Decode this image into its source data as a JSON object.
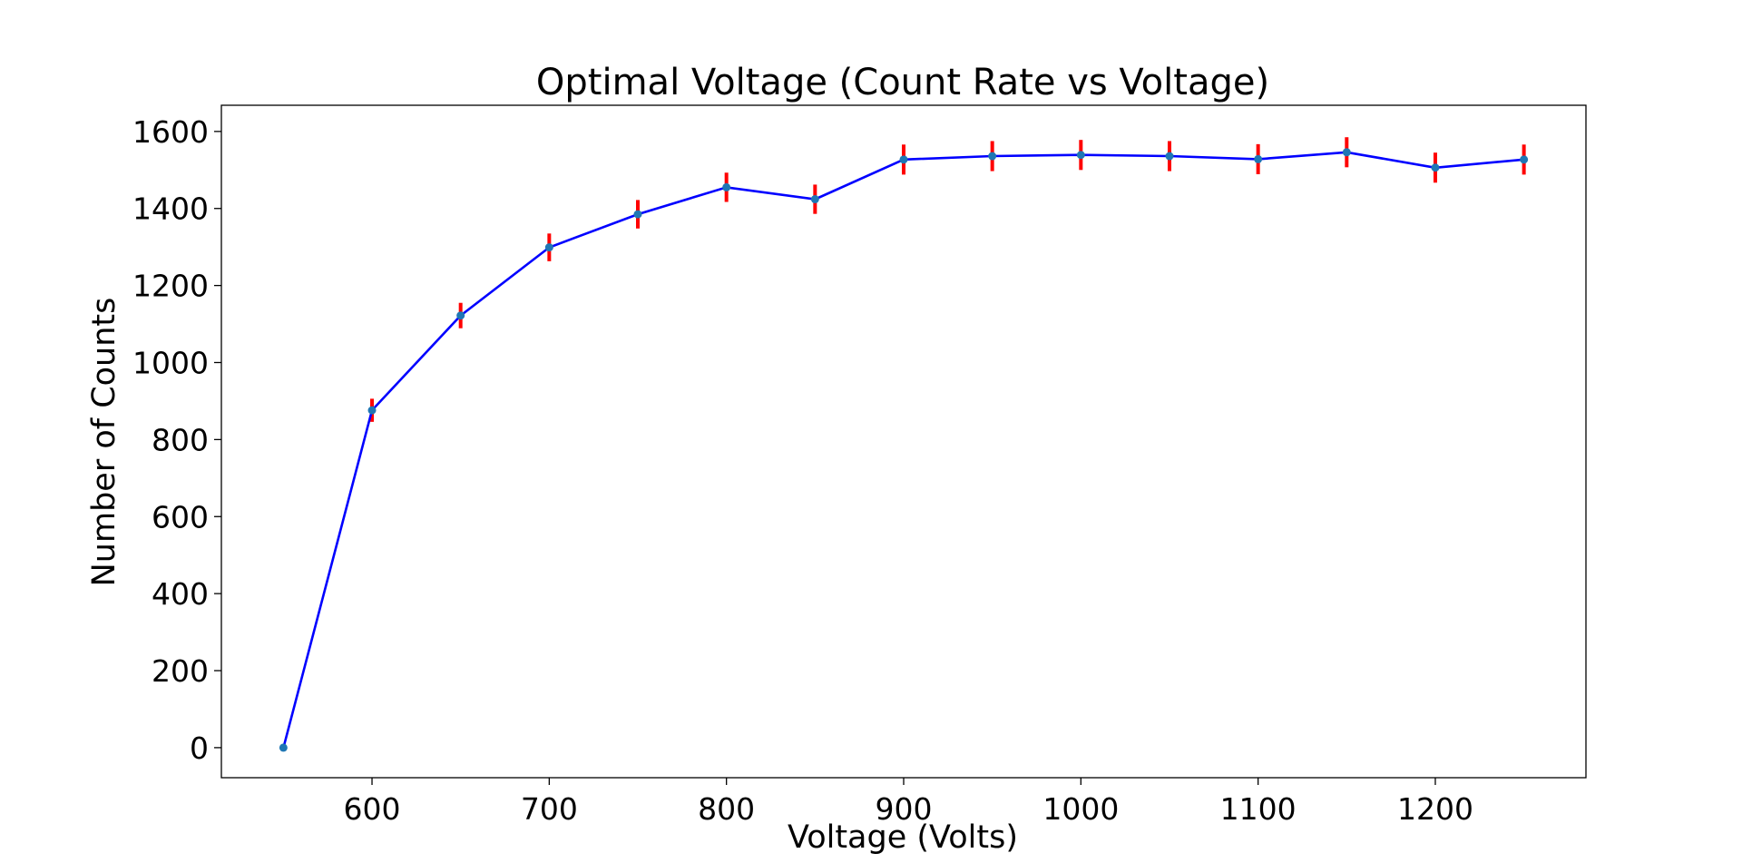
{
  "chart_data": {
    "type": "line",
    "title": "Optimal Voltage (Count Rate vs Voltage)",
    "xlabel": "Voltage (Volts)",
    "ylabel": "Number of Counts",
    "xlim": [
      515,
      1285
    ],
    "ylim": [
      -78,
      1668
    ],
    "x_ticks": [
      600,
      700,
      800,
      900,
      1000,
      1100,
      1200
    ],
    "y_ticks": [
      0,
      200,
      400,
      600,
      800,
      1000,
      1200,
      1400,
      1600
    ],
    "grid": false,
    "series": [
      {
        "name": "Count rate",
        "x": [
          550,
          600,
          650,
          700,
          750,
          800,
          850,
          900,
          950,
          1000,
          1050,
          1100,
          1150,
          1200,
          1250
        ],
        "y": [
          0,
          876,
          1122,
          1299,
          1385,
          1455,
          1424,
          1527,
          1536,
          1539,
          1536,
          1528,
          1546,
          1506,
          1527
        ],
        "yerr": [
          0,
          30,
          33,
          36,
          37,
          38,
          38,
          39,
          39,
          39,
          39,
          39,
          39,
          39,
          39
        ],
        "line_color": "#0000ff",
        "marker_color": "#1f77b4",
        "errorbar_color": "#ff0000"
      }
    ]
  }
}
